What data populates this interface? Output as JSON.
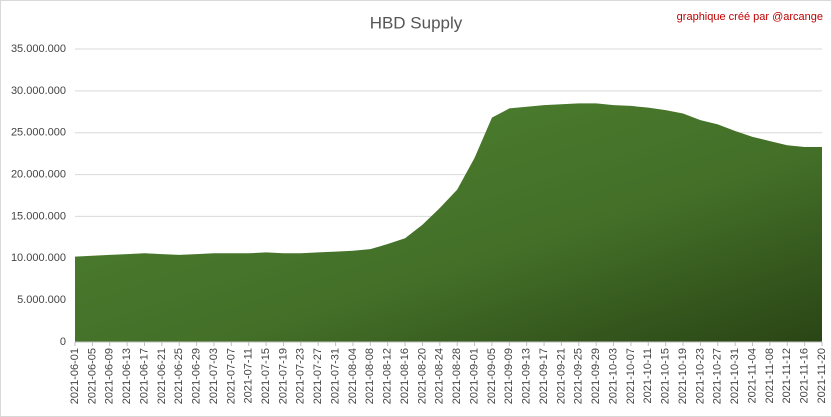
{
  "chart_data": {
    "type": "area",
    "title": "HBD Supply",
    "annotation": "graphique créé par @arcange",
    "categories": [
      "2021-06-01",
      "2021-06-05",
      "2021-06-09",
      "2021-06-13",
      "2021-06-17",
      "2021-06-21",
      "2021-06-25",
      "2021-06-29",
      "2021-07-03",
      "2021-07-07",
      "2021-07-11",
      "2021-07-15",
      "2021-07-19",
      "2021-07-23",
      "2021-07-27",
      "2021-07-31",
      "2021-08-04",
      "2021-08-08",
      "2021-08-12",
      "2021-08-16",
      "2021-08-20",
      "2021-08-24",
      "2021-08-28",
      "2021-09-01",
      "2021-09-05",
      "2021-09-09",
      "2021-09-13",
      "2021-09-17",
      "2021-09-21",
      "2021-09-25",
      "2021-09-29",
      "2021-10-03",
      "2021-10-07",
      "2021-10-11",
      "2021-10-15",
      "2021-10-19",
      "2021-10-23",
      "2021-10-27",
      "2021-10-31",
      "2021-11-04",
      "2021-11-08",
      "2021-11-12",
      "2021-11-16",
      "2021-11-20"
    ],
    "values": [
      10200000,
      10300000,
      10400000,
      10500000,
      10600000,
      10500000,
      10400000,
      10500000,
      10600000,
      10600000,
      10600000,
      10700000,
      10600000,
      10600000,
      10700000,
      10800000,
      10900000,
      11100000,
      11700000,
      12400000,
      14000000,
      16000000,
      18200000,
      22000000,
      26800000,
      27900000,
      28100000,
      28300000,
      28400000,
      28500000,
      28500000,
      28300000,
      28200000,
      28000000,
      27700000,
      27300000,
      26500000,
      26000000,
      25200000,
      24500000,
      24000000,
      23500000,
      23300000,
      23300000
    ],
    "color": "#4a7a2c",
    "ylim": [
      0,
      35000000
    ],
    "yticks": [
      0,
      {
        "value": 5000000,
        "label": "5.000.000"
      },
      {
        "value": 10000000,
        "label": "10.000.000"
      },
      {
        "value": 15000000,
        "label": "15.000.000"
      },
      {
        "value": 20000000,
        "label": "20.000.000"
      },
      {
        "value": 25000000,
        "label": "25.000.000"
      },
      {
        "value": 30000000,
        "label": "30.000.000"
      },
      {
        "value": 35000000,
        "label": "35.000.000"
      }
    ],
    "grid": true
  }
}
